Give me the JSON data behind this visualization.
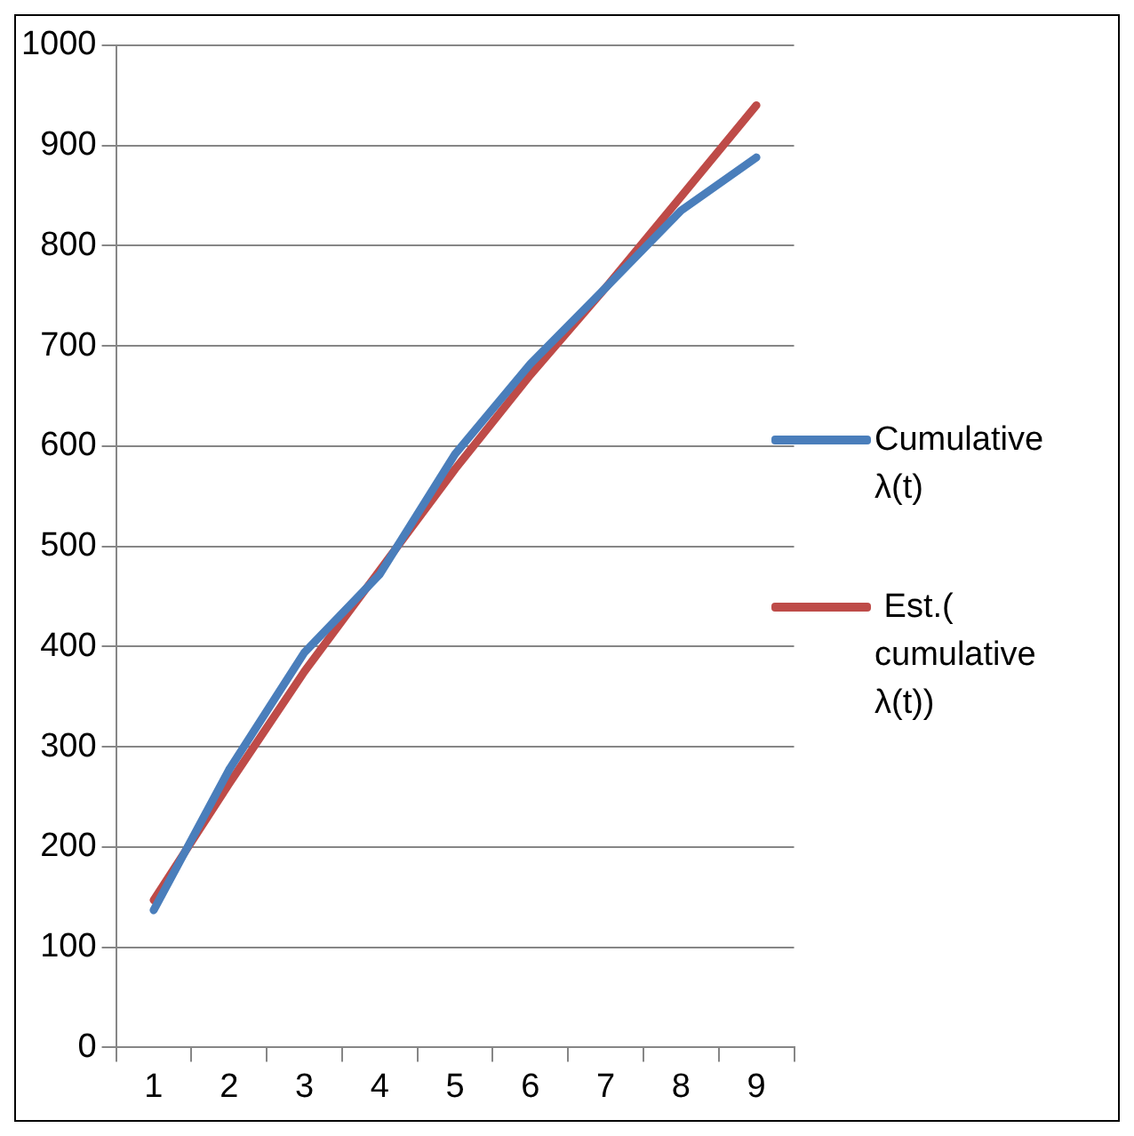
{
  "chart_data": {
    "type": "line",
    "categories": [
      "1",
      "2",
      "3",
      "4",
      "5",
      "6",
      "7",
      "8",
      "9"
    ],
    "series": [
      {
        "name": "Cumulative\nλ(t)",
        "color": "#4a7ebb",
        "values": [
          137,
          277,
          394,
          472,
          592,
          682,
          758,
          835,
          888
        ]
      },
      {
        "name": " Est.(\ncumulative\nλ(t))",
        "color": "#be4b48",
        "values": [
          147,
          263,
          375,
          476,
          577,
          671,
          758,
          849,
          940
        ]
      }
    ],
    "ylim": [
      0,
      1000
    ],
    "yticks": [
      0,
      100,
      200,
      300,
      400,
      500,
      600,
      700,
      800,
      900,
      1000
    ],
    "grid": "y",
    "legend": "right",
    "marker": "none",
    "line_style": "solid"
  }
}
